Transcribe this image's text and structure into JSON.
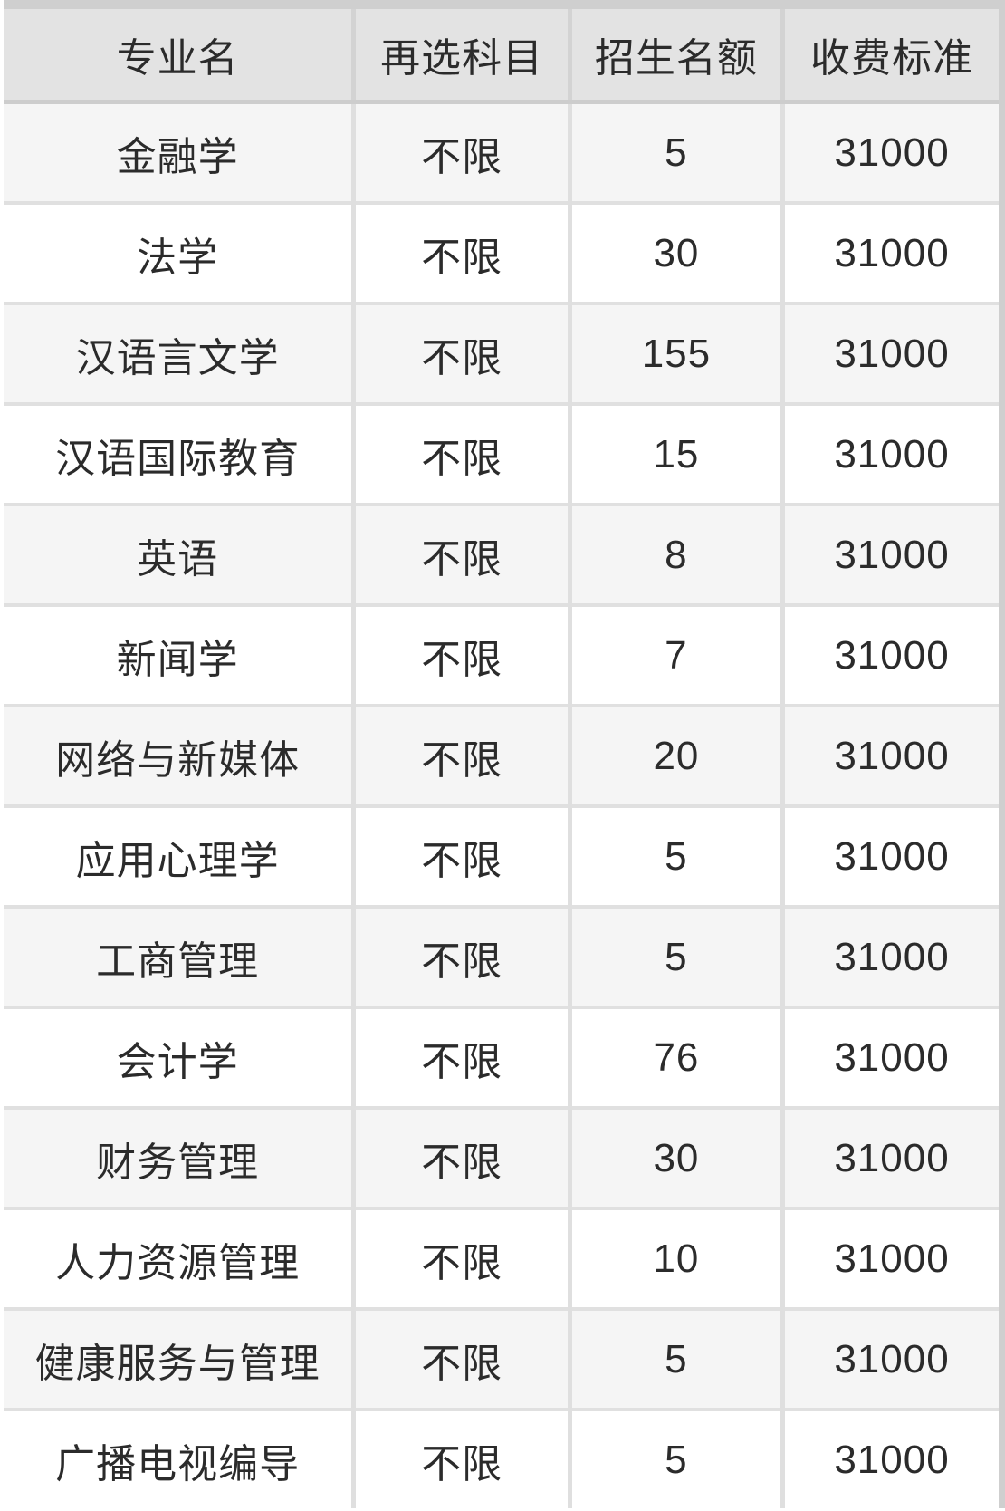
{
  "table": {
    "headers": [
      "专业名",
      "再选科目",
      "招生名额",
      "收费标准"
    ],
    "rows": [
      {
        "major": "金融学",
        "subjects": "不限",
        "quota": "5",
        "fee": "31000"
      },
      {
        "major": "法学",
        "subjects": "不限",
        "quota": "30",
        "fee": "31000"
      },
      {
        "major": "汉语言文学",
        "subjects": "不限",
        "quota": "155",
        "fee": "31000"
      },
      {
        "major": "汉语国际教育",
        "subjects": "不限",
        "quota": "15",
        "fee": "31000"
      },
      {
        "major": "英语",
        "subjects": "不限",
        "quota": "8",
        "fee": "31000"
      },
      {
        "major": "新闻学",
        "subjects": "不限",
        "quota": "7",
        "fee": "31000"
      },
      {
        "major": "网络与新媒体",
        "subjects": "不限",
        "quota": "20",
        "fee": "31000"
      },
      {
        "major": "应用心理学",
        "subjects": "不限",
        "quota": "5",
        "fee": "31000"
      },
      {
        "major": "工商管理",
        "subjects": "不限",
        "quota": "5",
        "fee": "31000"
      },
      {
        "major": "会计学",
        "subjects": "不限",
        "quota": "76",
        "fee": "31000"
      },
      {
        "major": "财务管理",
        "subjects": "不限",
        "quota": "30",
        "fee": "31000"
      },
      {
        "major": "人力资源管理",
        "subjects": "不限",
        "quota": "10",
        "fee": "31000"
      },
      {
        "major": "健康服务与管理",
        "subjects": "不限",
        "quota": "5",
        "fee": "31000"
      },
      {
        "major": "广播电视编导",
        "subjects": "不限",
        "quota": "5",
        "fee": "31000"
      }
    ]
  }
}
